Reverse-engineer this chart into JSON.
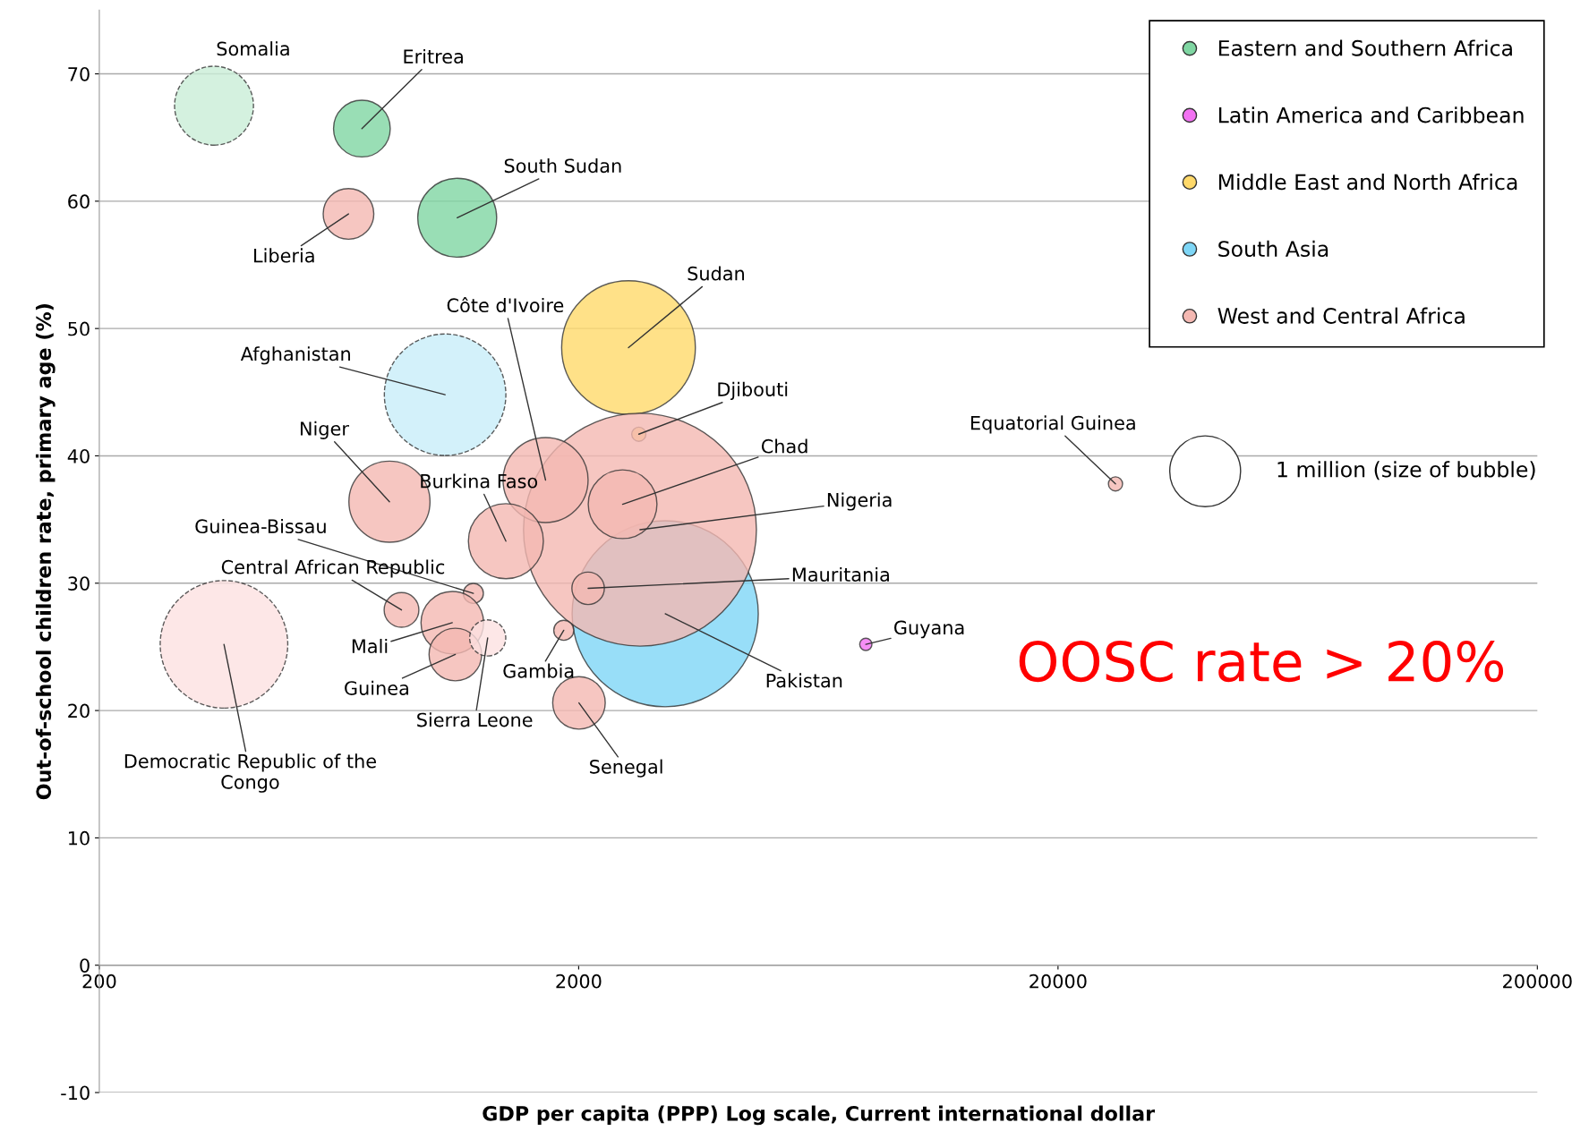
{
  "chart_data": {
    "type": "bubble",
    "xlabel": "GDP per capita (PPP) Log scale, Current international dollar",
    "ylabel": "Out-of-school children rate, primary age (%)",
    "log": "x",
    "xlim": [
      200,
      200000
    ],
    "xticks": [
      200,
      2000,
      20000,
      200000
    ],
    "ylim": [
      -10,
      75
    ],
    "yticks": [
      -10,
      0,
      10,
      20,
      30,
      40,
      50,
      60,
      70
    ],
    "grid": "y",
    "legend": "top right",
    "size_legend": [
      {
        "value": 1,
        "label": "1 million (size of bubble)"
      }
    ],
    "series": [
      {
        "name": "Eastern and Southern Africa",
        "color": "#7fd6a2",
        "x": [
          706,
          1116
        ],
        "values": [
          65.7,
          58.7
        ],
        "sizes": [
          0.64,
          1.24
        ]
      },
      {
        "name": "Latin America and Caribbean",
        "color": "#f272f2",
        "x": [
          7945
        ],
        "values": [
          25.2
        ],
        "sizes": [
          0.03
        ]
      },
      {
        "name": "Middle East and North Africa",
        "color": "#ffd96a",
        "x": [
          2541,
          2670
        ],
        "values": [
          48.5,
          41.7
        ],
        "sizes": [
          3.56,
          0.04
        ]
      },
      {
        "name": "South Asia",
        "color": "#7ed6f6",
        "x": [
          3031
        ],
        "values": [
          27.6
        ],
        "sizes": [
          6.9
        ]
      },
      {
        "name": "West and Central Africa",
        "color": "#f4b8b2",
        "x": [
          662,
          2685,
          2470,
          1706,
          1410,
          806,
          2093,
          1206,
          854,
          1090,
          1106,
          1862,
          2003,
          26360
        ],
        "values": [
          59.0,
          34.2,
          36.2,
          38.1,
          33.3,
          36.4,
          29.6,
          29.2,
          27.9,
          26.9,
          24.4,
          26.3,
          20.6,
          37.8
        ],
        "sizes": [
          0.51,
          10.8,
          0.94,
          1.44,
          1.12,
          1.31,
          0.21,
          0.08,
          0.24,
          0.78,
          0.55,
          0.08,
          0.55,
          0.04
        ]
      },
      {
        "color": "#c9eed7",
        "line_style": "dashed",
        "x": [
          347
        ],
        "values": [
          67.5
        ],
        "sizes": [
          1.24
        ]
      },
      {
        "color": "#c8edf9",
        "line_style": "dashed",
        "x": [
          1053
        ],
        "values": [
          44.8
        ],
        "sizes": [
          2.94
        ]
      },
      {
        "color": "#fde1e1",
        "line_style": "dashed",
        "x": [
          364,
          1292
        ],
        "values": [
          25.2,
          25.7
        ],
        "sizes": [
          3.24,
          0.26
        ]
      }
    ],
    "annotations": [
      {
        "text": "Somalia",
        "x": 347,
        "y": 67.5
      },
      {
        "text": "Eritrea",
        "x": 706,
        "y": 65.7
      },
      {
        "text": "South Sudan",
        "x": 1116,
        "y": 58.7
      },
      {
        "text": "Liberia",
        "x": 662,
        "y": 59.0
      },
      {
        "text": "Sudan",
        "x": 2541,
        "y": 48.5
      },
      {
        "text": "Côte d'Ivoire",
        "x": 1706,
        "y": 38.1
      },
      {
        "text": "Afghanistan",
        "x": 1053,
        "y": 44.8
      },
      {
        "text": "Djibouti",
        "x": 2670,
        "y": 41.7
      },
      {
        "text": "Chad",
        "x": 2470,
        "y": 36.2
      },
      {
        "text": "Nigeria",
        "x": 2685,
        "y": 34.2
      },
      {
        "text": "Equatorial Guinea",
        "x": 26360,
        "y": 37.8
      },
      {
        "text": "Niger",
        "x": 806,
        "y": 36.4
      },
      {
        "text": "Burkina Faso",
        "x": 1410,
        "y": 33.3
      },
      {
        "text": "Guinea-Bissau",
        "x": 1206,
        "y": 29.2
      },
      {
        "text": "Central African Republic",
        "x": 854,
        "y": 27.9
      },
      {
        "text": "Mauritania",
        "x": 2093,
        "y": 29.6
      },
      {
        "text": "Guyana",
        "x": 7945,
        "y": 25.2
      },
      {
        "text": "Mali",
        "x": 1090,
        "y": 26.9
      },
      {
        "text": "Gambia",
        "x": 1862,
        "y": 26.3
      },
      {
        "text": "Guinea",
        "x": 1106,
        "y": 24.4
      },
      {
        "text": "Sierra Leone",
        "x": 1292,
        "y": 25.7
      },
      {
        "text": "Pakistan",
        "x": 3031,
        "y": 27.6
      },
      {
        "text": "Senegal",
        "x": 2003,
        "y": 20.6
      },
      {
        "text": "Democratic Republic of the\nCongo",
        "x": 364,
        "y": 25.2
      },
      "OOSC rate > 20%"
    ]
  }
}
